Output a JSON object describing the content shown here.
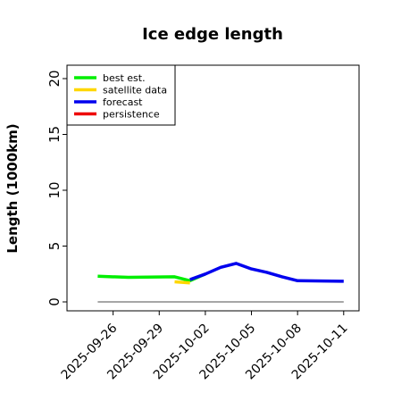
{
  "chart_data": {
    "type": "line",
    "title": "Ice edge length",
    "xlabel": "",
    "ylabel": "Length (1000km)",
    "ylim": [
      -0.8,
      21.2
    ],
    "xlim": [
      "2025-09-23",
      "2025-10-12"
    ],
    "yticks": [
      "0",
      "5",
      "10",
      "15",
      "20"
    ],
    "xticks": [
      "2025-09-26",
      "2025-09-29",
      "2025-10-02",
      "2025-10-05",
      "2025-10-08",
      "2025-10-11"
    ],
    "highlight_xtick": "2025-10-02",
    "highlight_color": "#2e8b2e",
    "grid": false,
    "legend_position": "top-left",
    "series": [
      {
        "name": "best est.",
        "color": "#00ee00",
        "x": [
          "2025-09-25",
          "2025-09-27",
          "2025-09-30",
          "2025-10-01",
          "2025-10-02"
        ],
        "y": [
          2.3,
          2.2,
          2.25,
          1.9,
          2.5
        ]
      },
      {
        "name": "satellite data",
        "color": "#ffd700",
        "x": [
          "2025-09-30",
          "2025-10-01"
        ],
        "y": [
          1.8,
          1.7
        ]
      },
      {
        "name": "forecast",
        "color": "#0000ee",
        "x": [
          "2025-10-01",
          "2025-10-02",
          "2025-10-03",
          "2025-10-04",
          "2025-10-05",
          "2025-10-06",
          "2025-10-07",
          "2025-10-08",
          "2025-10-11"
        ],
        "y": [
          2.0,
          2.5,
          3.1,
          3.45,
          2.95,
          2.65,
          2.25,
          1.9,
          1.85
        ]
      },
      {
        "name": "persistence",
        "color": "#ee0000",
        "x": [],
        "y": []
      }
    ],
    "reference_line": {
      "y": 0,
      "x": [
        "2025-09-25",
        "2025-10-11"
      ],
      "color": "#888888"
    }
  }
}
